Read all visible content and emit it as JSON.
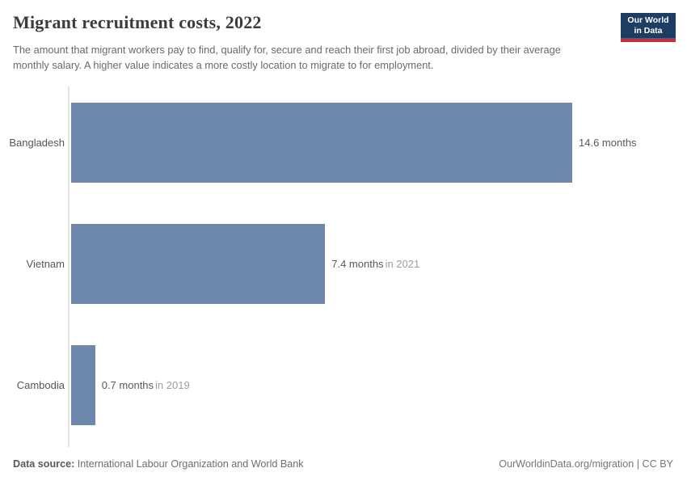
{
  "header": {
    "title": "Migrant recruitment costs, 2022",
    "subtitle": "The amount that migrant workers pay to find, qualify for, secure and reach their first job abroad, divided by their average monthly salary. A higher value indicates a more costly location to migrate to for employment.",
    "logo": {
      "line1": "Our World",
      "line2": "in Data"
    }
  },
  "chart_data": {
    "type": "bar",
    "orientation": "horizontal",
    "title": "Migrant recruitment costs, 2022",
    "unit": "months",
    "categories": [
      "Bangladesh",
      "Vietnam",
      "Cambodia"
    ],
    "values": [
      14.6,
      7.4,
      0.7
    ],
    "value_labels": [
      "14.6 months",
      "7.4 months",
      "0.7 months"
    ],
    "year_notes": [
      "",
      "in 2021",
      "in 2019"
    ],
    "xlim": [
      0,
      14.6
    ],
    "grid": false,
    "legend": "none",
    "bar_color": "#6d87ad"
  },
  "footer": {
    "source_label": "Data source:",
    "source_text": " International Labour Organization and World Bank",
    "credit": "OurWorldinData.org/migration | CC BY"
  },
  "colors": {
    "bar": "#6d87ad",
    "axis_line": "#e3e3e3",
    "title_text": "#383d40",
    "subtitle_text": "#646b6f",
    "year_note_text": "#9b9fa3",
    "logo_navy": "#1d3d63",
    "logo_red": "#c5303e"
  }
}
